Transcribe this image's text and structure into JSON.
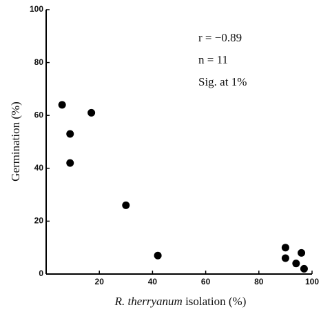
{
  "chart_data": {
    "type": "scatter",
    "x_label_species": "R.  therryanum",
    "x_label_rest": "isolation (%)",
    "y_label": "Germination (%)",
    "annotations": [
      "r = −0.89",
      "n = 11",
      "Sig. at 1%"
    ],
    "x": [
      6,
      9,
      17,
      9,
      30,
      42,
      90,
      90,
      94,
      96,
      97
    ],
    "values": [
      64,
      53,
      61,
      42,
      26,
      7,
      10,
      6,
      4,
      8,
      2
    ],
    "color": "#000000",
    "xlim": [
      0,
      100
    ],
    "xticks": [
      0,
      20,
      40,
      60,
      80,
      100
    ],
    "ylim": [
      0,
      100
    ],
    "yticks": [
      0,
      20,
      40,
      60,
      80,
      100
    ],
    "grid": false
  }
}
